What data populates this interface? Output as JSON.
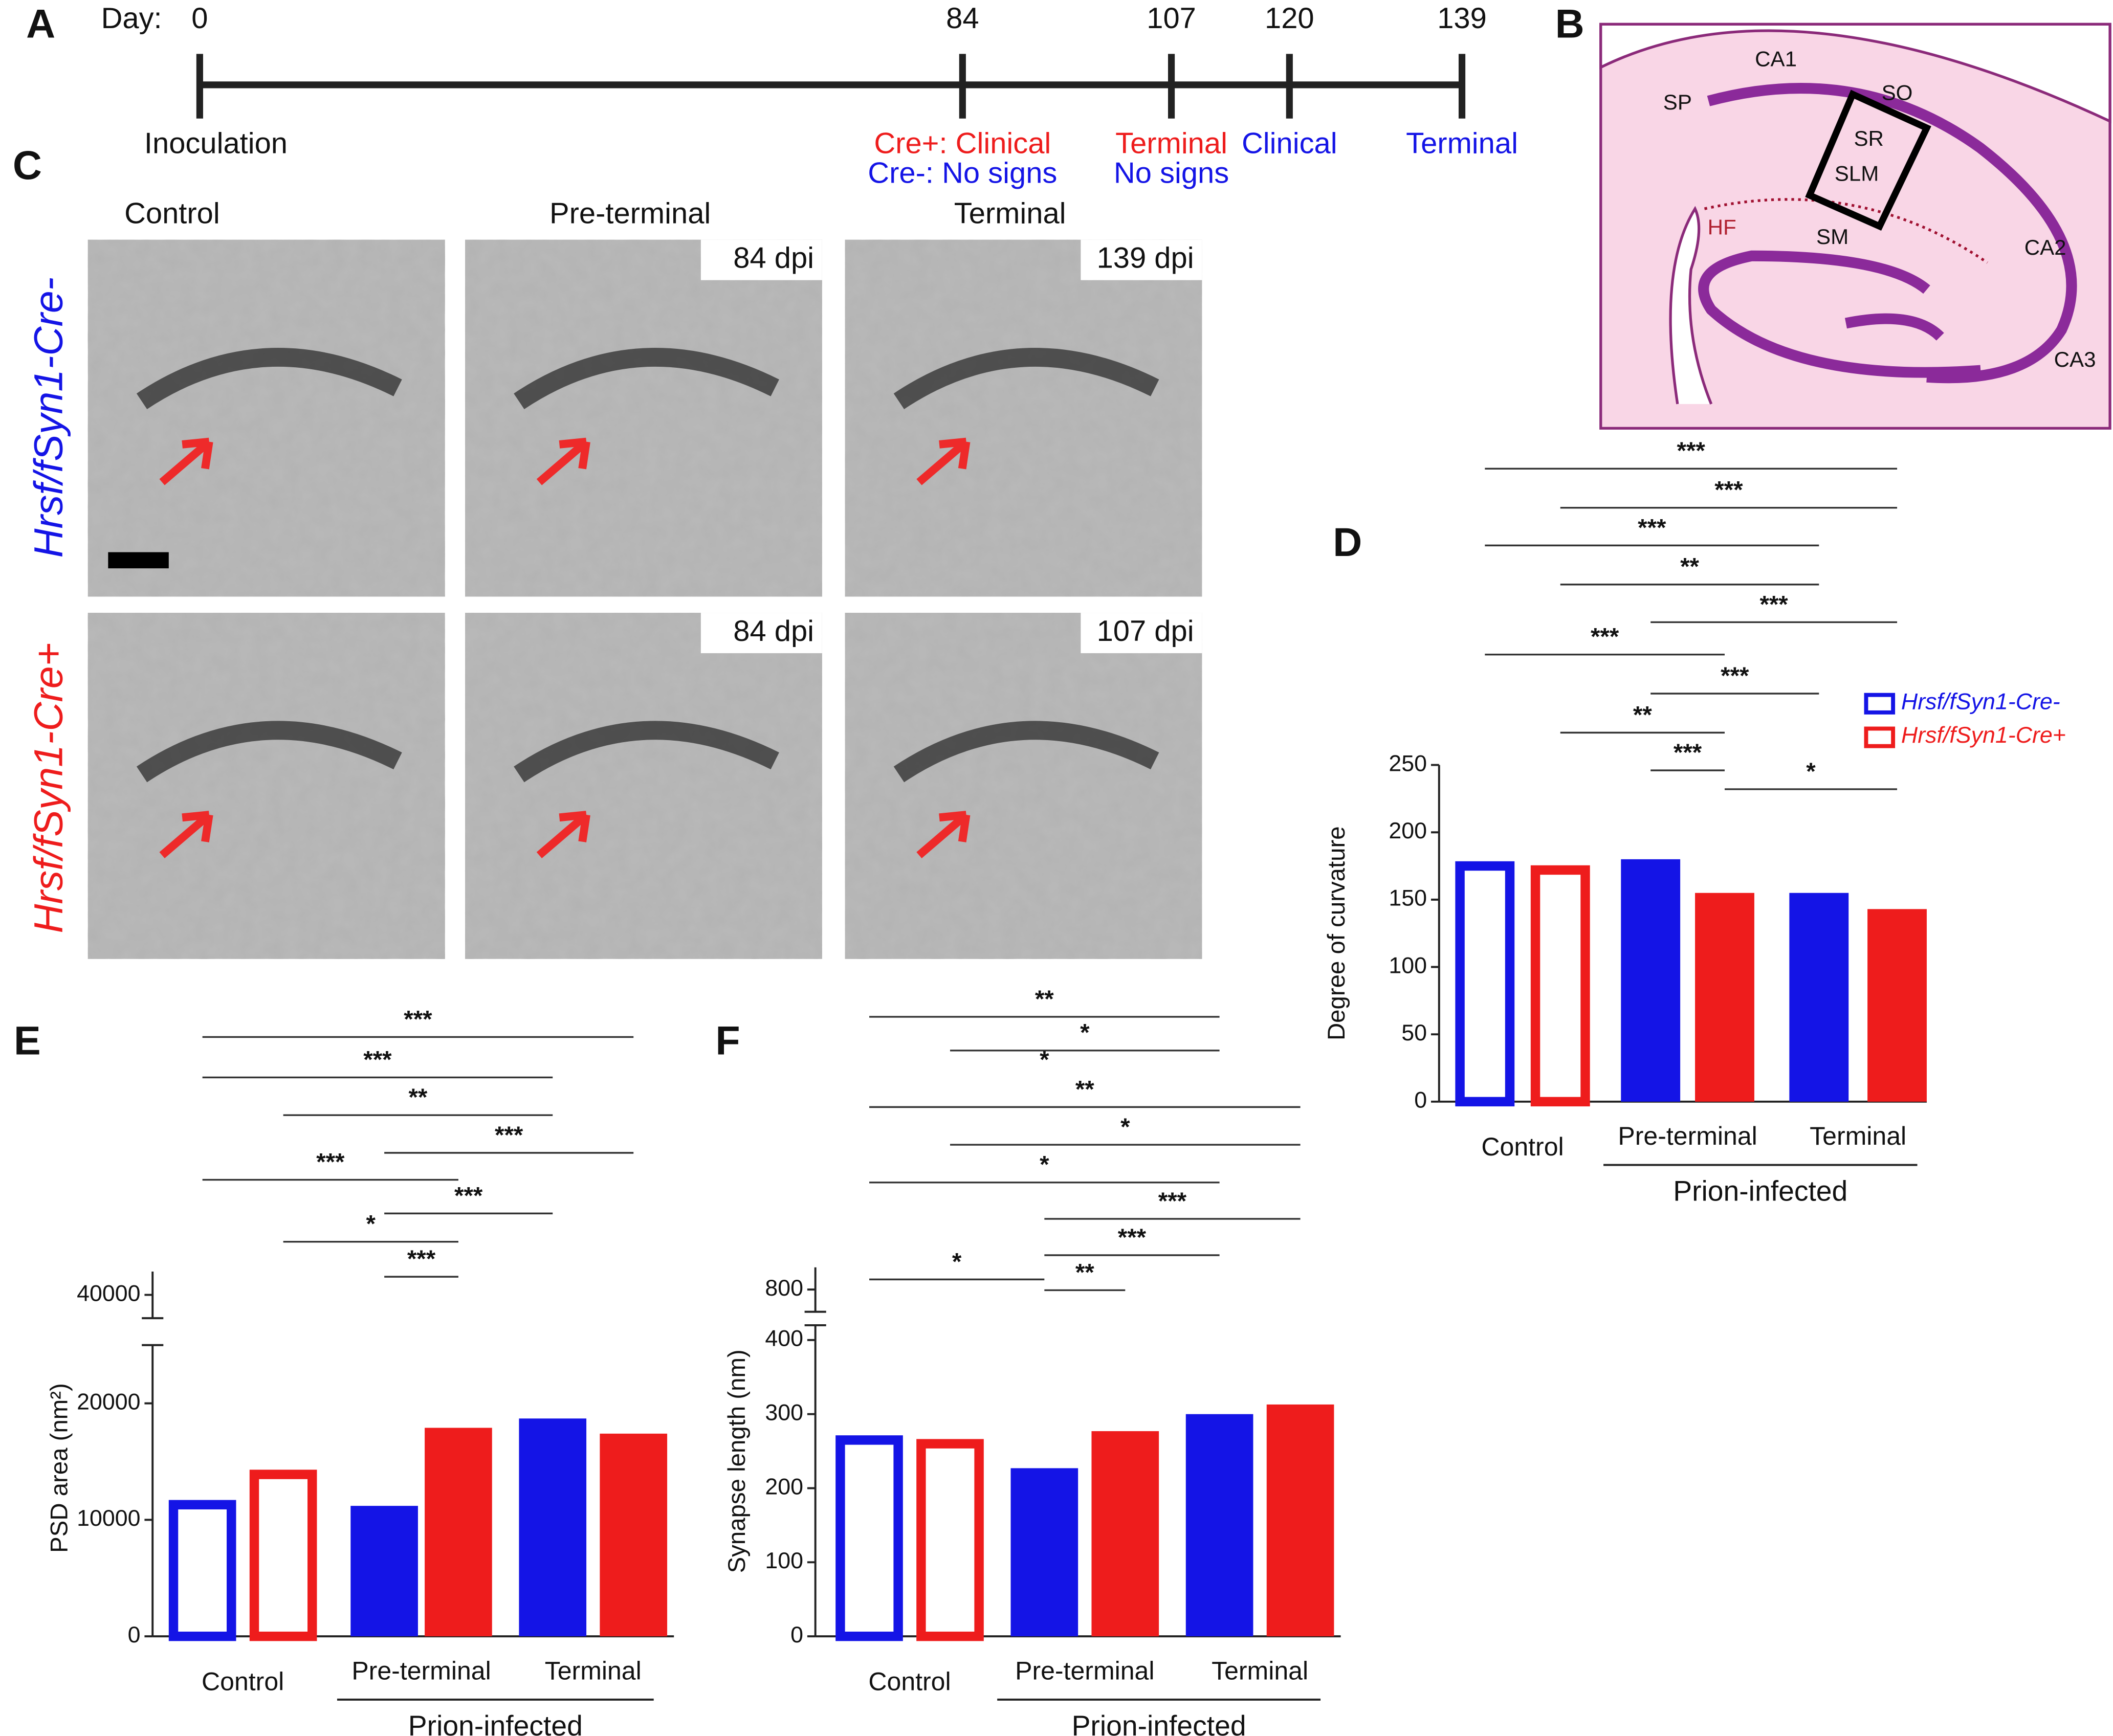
{
  "panel_letters": [
    "A",
    "B",
    "C",
    "D",
    "E",
    "F"
  ],
  "em_panel": {
    "columns": [
      "Control",
      "Pre-terminal",
      "Terminal"
    ],
    "rows": [
      "Hrsf/fSyn1-Cre-",
      "Hrsf/fSyn1-Cre+"
    ],
    "dpi_labels": [
      [
        "84 dpi",
        "139 dpi"
      ],
      [
        "84 dpi",
        "107 dpi"
      ]
    ]
  },
  "hippocampus": {
    "labels": [
      "CA1",
      "SO",
      "SP",
      "SR",
      "SLM",
      "HF",
      "SM",
      "CA2",
      "CA3"
    ]
  },
  "chart_data": [
    {
      "type": "timeline",
      "axis_label": "Day:",
      "x": [
        0,
        84,
        107,
        120,
        139
      ],
      "xlim": [
        0,
        139
      ],
      "events": [
        [
          {
            "text": "Inoculation",
            "color": "#111111"
          }
        ],
        [
          {
            "text": "Cre+: Clinical",
            "color": "#ee1c1c"
          },
          {
            "text": "Cre-: No signs",
            "color": "#1414e6"
          }
        ],
        [
          {
            "text": "Terminal",
            "color": "#ee1c1c"
          },
          {
            "text": "No signs",
            "color": "#1414e6"
          }
        ],
        [
          {
            "text": "Clinical",
            "color": "#1414e6"
          }
        ],
        [
          {
            "text": "Terminal",
            "color": "#1414e6"
          }
        ]
      ]
    },
    {
      "type": "bar",
      "ylabel": "Degree of curvature",
      "categories": [
        "Control",
        "Pre-terminal",
        "Terminal"
      ],
      "group_label": "Prion-infected",
      "hollow_categories": [
        0
      ],
      "series": [
        {
          "name": "Hrsf/fSyn1-Cre-",
          "color": "#1414e6",
          "values": [
            175,
            180,
            155
          ]
        },
        {
          "name": "Hrsf/fSyn1-Cre+",
          "color": "#ee1c1c",
          "values": [
            172,
            155,
            143
          ]
        }
      ],
      "ylim": [
        0,
        250
      ],
      "yticks": [
        0,
        50,
        100,
        150,
        200,
        250
      ],
      "legend": "right",
      "significance": [
        "***",
        "***",
        "***",
        "**",
        "***",
        "***",
        "***",
        "**",
        "***",
        "*"
      ]
    },
    {
      "type": "bar",
      "ylabel": "PSD area (nm²)",
      "categories": [
        "Control",
        "Pre-terminal",
        "Terminal"
      ],
      "group_label": "Prion-infected",
      "hollow_categories": [
        0
      ],
      "series": [
        {
          "color": "#1414e6",
          "values": [
            11300,
            11200,
            18700
          ]
        },
        {
          "color": "#ee1c1c",
          "values": [
            13900,
            17900,
            17400
          ]
        }
      ],
      "ylim": [
        0,
        42000
      ],
      "axis_break": [
        25000,
        38000
      ],
      "yticks": [
        0,
        10000,
        20000,
        40000
      ],
      "significance": [
        "***",
        "***",
        "**",
        "***",
        "***",
        "***",
        "*",
        "***"
      ]
    },
    {
      "type": "bar",
      "ylabel": "Synapse length (nm)",
      "categories": [
        "Control",
        "Pre-terminal",
        "Terminal"
      ],
      "group_label": "Prion-infected",
      "hollow_categories": [
        0
      ],
      "series": [
        {
          "color": "#1414e6",
          "values": [
            265,
            227,
            300
          ]
        },
        {
          "color": "#ee1c1c",
          "values": [
            260,
            277,
            313
          ]
        }
      ],
      "ylim": [
        0,
        830
      ],
      "axis_break": [
        420,
        770
      ],
      "yticks": [
        0,
        100,
        200,
        300,
        400,
        800
      ],
      "significance": [
        "**",
        "*",
        "*",
        "**",
        "*",
        "*",
        "***",
        "***",
        "**",
        "*"
      ]
    }
  ]
}
